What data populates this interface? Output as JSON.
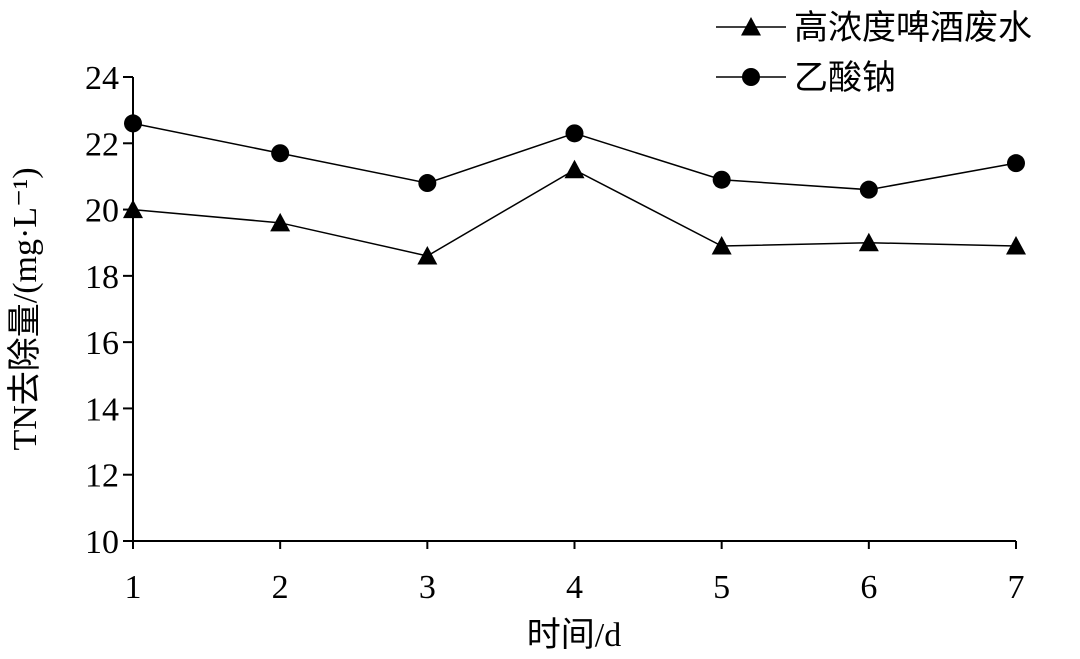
{
  "chart_data": {
    "type": "line",
    "x": [
      1,
      2,
      3,
      4,
      5,
      6,
      7
    ],
    "xlabel": "时间/d",
    "ylabel": "TN去除量/(mg·L⁻¹)",
    "ylim": [
      10,
      24
    ],
    "yticks": [
      10,
      12,
      14,
      16,
      18,
      20,
      22,
      24
    ],
    "xticks": [
      1,
      2,
      3,
      4,
      5,
      6,
      7
    ],
    "grid": false,
    "legend_position": "top-right",
    "series": [
      {
        "name": "高浓度啤酒废水",
        "marker": "triangle",
        "color": "#000000",
        "values": [
          20.0,
          19.6,
          18.6,
          21.2,
          18.9,
          19.0,
          18.9
        ]
      },
      {
        "name": "乙酸钠",
        "marker": "circle",
        "color": "#000000",
        "values": [
          22.6,
          21.7,
          20.8,
          22.3,
          20.9,
          20.6,
          21.4
        ]
      }
    ]
  }
}
